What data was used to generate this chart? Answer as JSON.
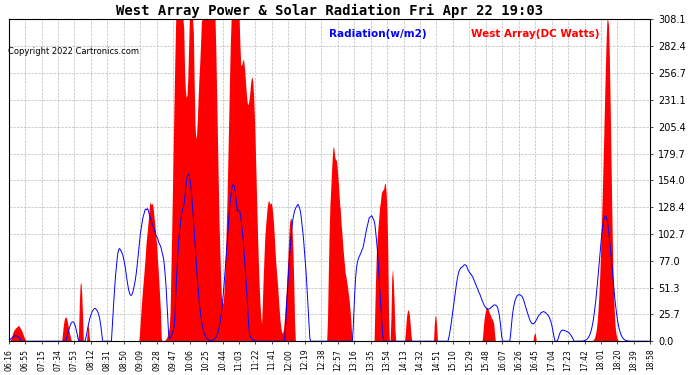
{
  "title": "West Array Power & Solar Radiation Fri Apr 22 19:03",
  "copyright": "Copyright 2022 Cartronics.com",
  "legend_radiation": "Radiation(w/m2)",
  "legend_west_array": "West Array(DC Watts)",
  "legend_radiation_color": "blue",
  "legend_west_array_color": "red",
  "yticks": [
    0.0,
    25.7,
    51.3,
    77.0,
    102.7,
    128.4,
    154.0,
    179.7,
    205.4,
    231.1,
    256.7,
    282.4,
    308.1
  ],
  "ymax": 308.1,
  "ymin": 0.0,
  "background_color": "#ffffff",
  "plot_background": "#ffffff",
  "grid_color": "#aaaaaa",
  "fill_color": "red",
  "line_color": "blue",
  "xtick_labels": [
    "06:16",
    "06:55",
    "07:15",
    "07:34",
    "07:53",
    "08:12",
    "08:31",
    "08:50",
    "09:09",
    "09:28",
    "09:47",
    "10:06",
    "10:25",
    "10:44",
    "11:03",
    "11:22",
    "11:41",
    "12:00",
    "12:19",
    "12:38",
    "12:57",
    "13:16",
    "13:35",
    "13:54",
    "14:13",
    "14:32",
    "14:51",
    "15:10",
    "15:29",
    "15:48",
    "16:07",
    "16:26",
    "16:45",
    "17:04",
    "17:23",
    "17:42",
    "18:01",
    "18:20",
    "18:39",
    "18:58"
  ]
}
